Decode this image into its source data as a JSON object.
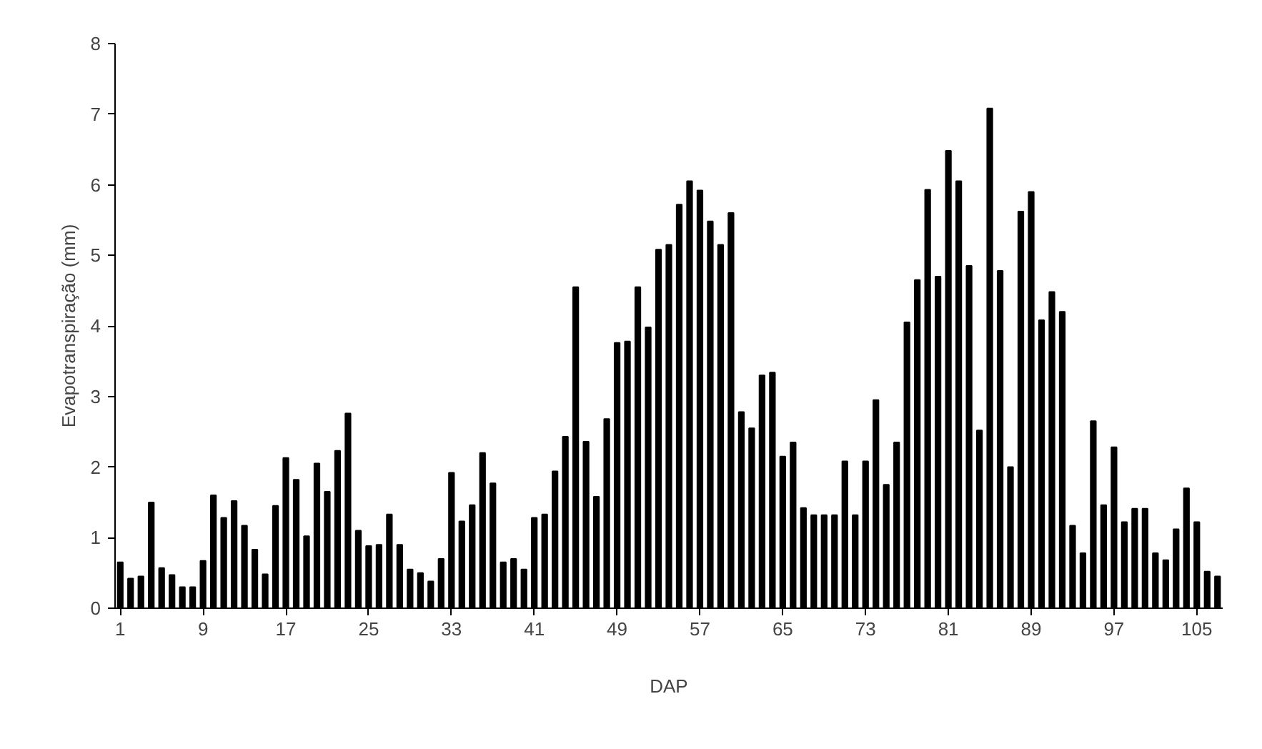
{
  "chart_data": {
    "type": "bar",
    "xlabel": "DAP",
    "ylabel": "Evapotranspiração (mm)",
    "categories": [
      "1",
      null,
      null,
      null,
      null,
      null,
      null,
      null,
      "9",
      null,
      null,
      null,
      null,
      null,
      null,
      null,
      "17",
      null,
      null,
      null,
      null,
      null,
      null,
      null,
      "25",
      null,
      null,
      null,
      null,
      null,
      null,
      null,
      "33",
      null,
      null,
      null,
      null,
      null,
      null,
      null,
      "41",
      null,
      null,
      null,
      null,
      null,
      null,
      null,
      "49",
      null,
      null,
      null,
      null,
      null,
      null,
      null,
      "57",
      null,
      null,
      null,
      null,
      null,
      null,
      null,
      "65",
      null,
      null,
      null,
      null,
      null,
      null,
      null,
      "73",
      null,
      null,
      null,
      null,
      null,
      null,
      null,
      "81",
      null,
      null,
      null,
      null,
      null,
      null,
      null,
      "89",
      null,
      null,
      null,
      null,
      null,
      null,
      null,
      "97",
      null,
      null,
      null,
      null,
      null,
      null,
      null,
      "105",
      null,
      null
    ],
    "values": [
      0.65,
      0.42,
      0.45,
      1.5,
      0.57,
      0.47,
      0.3,
      0.3,
      0.67,
      1.6,
      1.28,
      1.52,
      1.17,
      0.83,
      0.48,
      1.45,
      2.13,
      1.82,
      1.02,
      2.05,
      1.65,
      2.23,
      2.76,
      1.1,
      0.88,
      0.9,
      1.33,
      0.9,
      0.55,
      0.5,
      0.38,
      0.7,
      1.92,
      1.23,
      1.46,
      2.2,
      1.77,
      0.65,
      0.7,
      0.55,
      1.28,
      1.33,
      1.94,
      2.43,
      4.55,
      2.36,
      1.58,
      2.68,
      3.76,
      3.78,
      4.55,
      3.98,
      5.08,
      5.15,
      5.72,
      6.05,
      5.92,
      5.48,
      5.15,
      5.6,
      2.78,
      2.55,
      3.3,
      3.34,
      2.15,
      2.35,
      1.42,
      1.32,
      1.32,
      1.32,
      2.08,
      1.32,
      2.08,
      2.95,
      1.75,
      2.35,
      4.05,
      4.65,
      5.93,
      4.7,
      6.48,
      6.05,
      4.85,
      2.52,
      7.08,
      4.78,
      2.0,
      5.62,
      5.9,
      4.08,
      4.48,
      4.2,
      1.17,
      0.78,
      2.65,
      1.46,
      2.28,
      1.22,
      1.41,
      1.41,
      0.78,
      0.68,
      1.12,
      1.7,
      1.22,
      0.52,
      0.45
    ],
    "color": "#000000",
    "ylim": [
      0,
      8
    ],
    "yticks": [
      0,
      1,
      2,
      3,
      4,
      5,
      6,
      7,
      8
    ],
    "grid": false
  }
}
